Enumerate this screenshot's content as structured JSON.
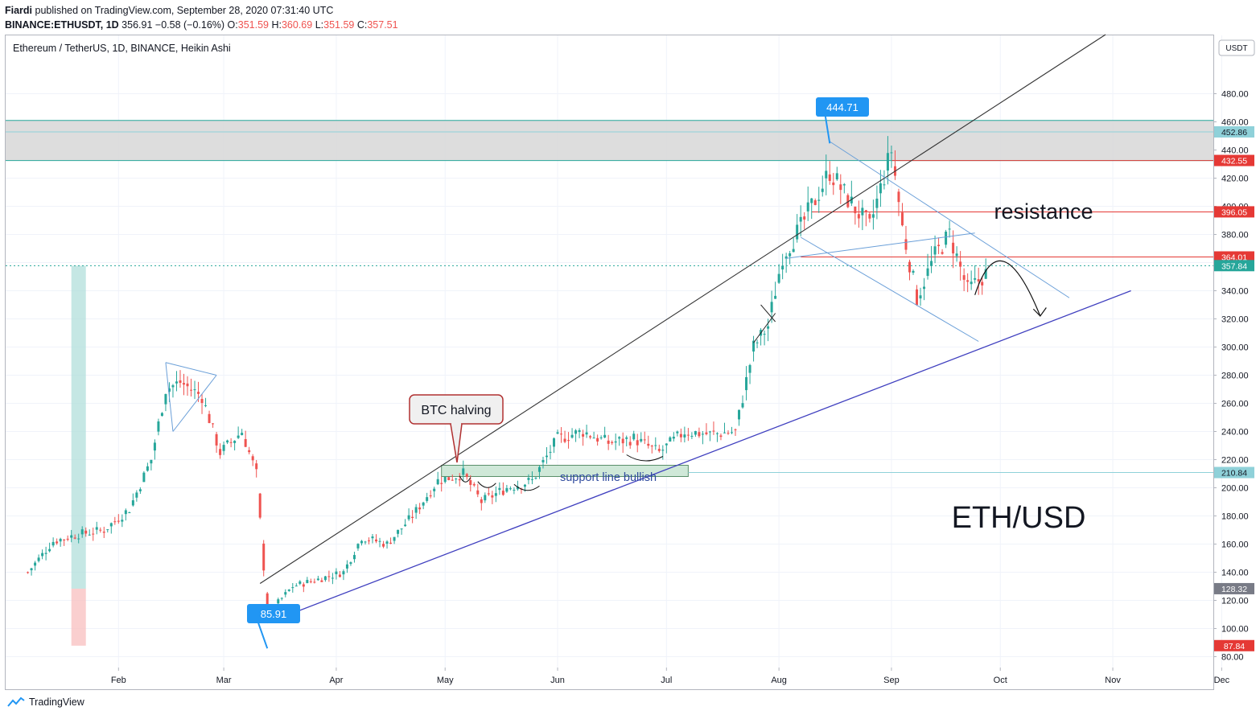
{
  "header": {
    "publisher_name": "Fiardi",
    "publisher_suffix": "published on TradingView.com, September 28, 2020 07:31:40 UTC",
    "symbol": "BINANCE:ETHUSDT, 1D",
    "last": "356.91",
    "change": "−0.58 (−0.16%)",
    "o_label": "O:",
    "o": "351.59",
    "h_label": "H:",
    "h": "360.69",
    "l_label": "L:",
    "l": "351.59",
    "c_label": "C:",
    "c": "357.51"
  },
  "footer": {
    "brand": "TradingView",
    "icon": "tradingview-logo-icon"
  },
  "colors": {
    "up": "#26a69a",
    "down": "#ef5350",
    "trend": "#3f3fbf",
    "channel": "#6a9fd8",
    "zone": "#d9d9d9",
    "blue_label": "#2196f3",
    "red_label": "#e53935"
  },
  "chart_data": {
    "type": "candlestick",
    "title": "Ethereum / TetherUS, 1D, BINANCE, Heikin Ashi",
    "currency_label": "USDT",
    "x_ticks": [
      "Feb",
      "Mar",
      "Apr",
      "May",
      "Jun",
      "Jul",
      "Aug",
      "Sep",
      "Oct",
      "Nov",
      "Dec"
    ],
    "y_ticks": [
      "480.00",
      "460.00",
      "440.00",
      "420.00",
      "400.00",
      "380.00",
      "360.00",
      "340.00",
      "320.00",
      "300.00",
      "280.00",
      "260.00",
      "240.00",
      "220.00",
      "200.00",
      "180.00",
      "160.00",
      "140.00",
      "120.00",
      "100.00",
      "80.00"
    ],
    "ylim": [
      75,
      500
    ],
    "price_labels": [
      {
        "value": 452.86,
        "text": "452.86",
        "color": "#8fd1d9",
        "text_color": "#131722"
      },
      {
        "value": 432.55,
        "text": "432.55",
        "color": "#e53935",
        "text_color": "#ffffff"
      },
      {
        "value": 396.05,
        "text": "396.05",
        "color": "#e53935",
        "text_color": "#ffffff"
      },
      {
        "value": 364.01,
        "text": "364.01",
        "color": "#e53935",
        "text_color": "#ffffff"
      },
      {
        "value": 357.84,
        "text": "357.84",
        "color": "#26a69a",
        "text_color": "#ffffff"
      },
      {
        "value": 210.84,
        "text": "210.84",
        "color": "#8fd1d9",
        "text_color": "#131722"
      },
      {
        "value": 128.32,
        "text": "128.32",
        "color": "#787b86",
        "text_color": "#ffffff"
      },
      {
        "value": 87.84,
        "text": "87.84",
        "color": "#e53935",
        "text_color": "#ffffff"
      }
    ],
    "callouts": [
      {
        "text": "444.71",
        "date": "2020-08-15",
        "value": 444.71
      },
      {
        "text": "85.91",
        "date": "2020-03-13",
        "value": 85.91
      }
    ],
    "annotations": {
      "btc_halving": "BTC halving",
      "support": "support line bullish",
      "resistance": "resistance",
      "pair": "ETH/USD"
    },
    "series": [
      {
        "date": "2020-01-07",
        "value": 140
      },
      {
        "date": "2020-01-14",
        "value": 162
      },
      {
        "date": "2020-01-21",
        "value": 167
      },
      {
        "date": "2020-01-28",
        "value": 170
      },
      {
        "date": "2020-02-04",
        "value": 185
      },
      {
        "date": "2020-02-10",
        "value": 220
      },
      {
        "date": "2020-02-14",
        "value": 270
      },
      {
        "date": "2020-02-18",
        "value": 275
      },
      {
        "date": "2020-02-24",
        "value": 265
      },
      {
        "date": "2020-02-29",
        "value": 225
      },
      {
        "date": "2020-03-06",
        "value": 240
      },
      {
        "date": "2020-03-10",
        "value": 210
      },
      {
        "date": "2020-03-13",
        "value": 110
      },
      {
        "date": "2020-03-20",
        "value": 130
      },
      {
        "date": "2020-03-27",
        "value": 135
      },
      {
        "date": "2020-04-03",
        "value": 140
      },
      {
        "date": "2020-04-08",
        "value": 165
      },
      {
        "date": "2020-04-15",
        "value": 160
      },
      {
        "date": "2020-04-22",
        "value": 180
      },
      {
        "date": "2020-04-29",
        "value": 205
      },
      {
        "date": "2020-05-06",
        "value": 210
      },
      {
        "date": "2020-05-11",
        "value": 190
      },
      {
        "date": "2020-05-18",
        "value": 200
      },
      {
        "date": "2020-05-25",
        "value": 205
      },
      {
        "date": "2020-06-01",
        "value": 235
      },
      {
        "date": "2020-06-08",
        "value": 240
      },
      {
        "date": "2020-06-15",
        "value": 232
      },
      {
        "date": "2020-06-22",
        "value": 235
      },
      {
        "date": "2020-06-29",
        "value": 225
      },
      {
        "date": "2020-07-06",
        "value": 240
      },
      {
        "date": "2020-07-13",
        "value": 238
      },
      {
        "date": "2020-07-20",
        "value": 240
      },
      {
        "date": "2020-07-25",
        "value": 300
      },
      {
        "date": "2020-07-29",
        "value": 315
      },
      {
        "date": "2020-08-02",
        "value": 365
      },
      {
        "date": "2020-08-07",
        "value": 385
      },
      {
        "date": "2020-08-15",
        "value": 425
      },
      {
        "date": "2020-08-20",
        "value": 405
      },
      {
        "date": "2020-08-26",
        "value": 385
      },
      {
        "date": "2020-09-01",
        "value": 440
      },
      {
        "date": "2020-09-04",
        "value": 385
      },
      {
        "date": "2020-09-08",
        "value": 335
      },
      {
        "date": "2020-09-13",
        "value": 365
      },
      {
        "date": "2020-09-17",
        "value": 380
      },
      {
        "date": "2020-09-22",
        "value": 340
      },
      {
        "date": "2020-09-27",
        "value": 352
      }
    ]
  }
}
